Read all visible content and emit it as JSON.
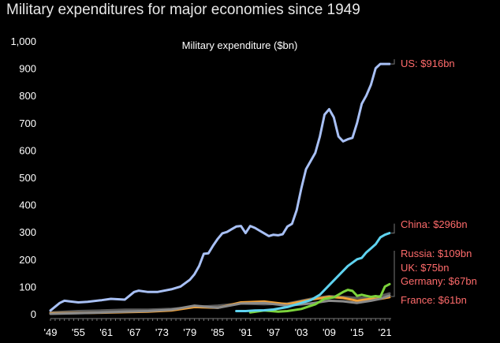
{
  "chart_data": {
    "type": "line",
    "title": "Military expenditures for major economies since 1949",
    "subtitle": "Military expenditure ($bn)",
    "xlabel": "",
    "ylabel": "",
    "xlim": [
      1949,
      2022
    ],
    "ylim": [
      0,
      1000
    ],
    "grid": false,
    "y_ticks": [
      0,
      100,
      200,
      300,
      400,
      500,
      600,
      700,
      800,
      900,
      1000
    ],
    "y_tick_labels": [
      "0",
      "100",
      "200",
      "300",
      "400",
      "500",
      "600",
      "700",
      "800",
      "900",
      "1,000"
    ],
    "x_ticks": [
      1949,
      1955,
      1961,
      1967,
      1973,
      1979,
      1985,
      1991,
      1997,
      2003,
      2009,
      2015,
      2021
    ],
    "x_tick_labels": [
      "'49",
      "'55",
      "'61",
      "'67",
      "'73",
      "'79",
      "'85",
      "'91",
      "'97",
      "'03",
      "'09",
      "'15",
      "'21"
    ],
    "series": [
      {
        "name": "UK",
        "color": "#5a5a5a",
        "label": "UK: $75bn",
        "x": [
          1949,
          1955,
          1960,
          1965,
          1970,
          1975,
          1980,
          1985,
          1990,
          1995,
          2000,
          2005,
          2009,
          2012,
          2015,
          2018,
          2020,
          2022
        ],
        "y": [
          5,
          10,
          12,
          15,
          15,
          18,
          25,
          30,
          38,
          35,
          38,
          55,
          65,
          62,
          58,
          60,
          65,
          75
        ]
      },
      {
        "name": "France",
        "color": "#f2a33a",
        "label": "France: $61bn",
        "x": [
          1949,
          1955,
          1960,
          1965,
          1970,
          1975,
          1980,
          1985,
          1990,
          1995,
          2000,
          2005,
          2009,
          2012,
          2015,
          2018,
          2020,
          2022
        ],
        "y": [
          2,
          3,
          4,
          6,
          8,
          12,
          25,
          22,
          42,
          45,
          35,
          52,
          62,
          58,
          48,
          55,
          55,
          61
        ]
      },
      {
        "name": "Germany",
        "color": "#8a8a8a",
        "label": "Germany: $67bn",
        "x": [
          1949,
          1955,
          1960,
          1965,
          1970,
          1975,
          1980,
          1985,
          1990,
          1995,
          2000,
          2005,
          2009,
          2012,
          2015,
          2018,
          2020,
          2022
        ],
        "y": [
          0,
          2,
          5,
          8,
          10,
          15,
          30,
          22,
          38,
          40,
          30,
          38,
          48,
          46,
          40,
          48,
          55,
          67
        ]
      },
      {
        "name": "Russia",
        "color": "#7cd33c",
        "label": "Russia: $109bn",
        "x": [
          1992,
          1995,
          1998,
          2000,
          2003,
          2006,
          2008,
          2010,
          2012,
          2013,
          2014,
          2015,
          2016,
          2017,
          2018,
          2019,
          2020,
          2021,
          2022
        ],
        "y": [
          5,
          12,
          8,
          10,
          18,
          35,
          55,
          60,
          80,
          88,
          84,
          66,
          70,
          66,
          62,
          65,
          62,
          100,
          109
        ]
      },
      {
        "name": "China",
        "color": "#5fd3f0",
        "label": "China: $296bn",
        "x": [
          1989,
          1991,
          1993,
          1995,
          1997,
          2000,
          2003,
          2005,
          2007,
          2009,
          2011,
          2013,
          2015,
          2016,
          2017,
          2018,
          2019,
          2020,
          2021,
          2022
        ],
        "y": [
          10,
          10,
          12,
          13,
          16,
          25,
          40,
          50,
          70,
          105,
          140,
          175,
          200,
          205,
          225,
          240,
          255,
          280,
          290,
          296
        ]
      },
      {
        "name": "US",
        "color": "#a8c0f5",
        "label": "US: $916bn",
        "x": [
          1949,
          1951,
          1952,
          1953,
          1955,
          1957,
          1960,
          1962,
          1965,
          1967,
          1968,
          1970,
          1972,
          1975,
          1977,
          1979,
          1980,
          1981,
          1982,
          1983,
          1984,
          1985,
          1986,
          1987,
          1988,
          1989,
          1990,
          1991,
          1992,
          1993,
          1994,
          1995,
          1996,
          1997,
          1998,
          1999,
          2000,
          2001,
          2002,
          2003,
          2004,
          2005,
          2006,
          2007,
          2008,
          2009,
          2010,
          2011,
          2012,
          2013,
          2014,
          2015,
          2016,
          2017,
          2018,
          2019,
          2020,
          2021,
          2022
        ],
        "y": [
          12,
          40,
          48,
          46,
          42,
          44,
          50,
          55,
          52,
          80,
          85,
          80,
          80,
          90,
          100,
          125,
          145,
          175,
          220,
          222,
          250,
          275,
          295,
          300,
          310,
          320,
          322,
          296,
          322,
          315,
          305,
          295,
          285,
          290,
          288,
          292,
          320,
          330,
          380,
          460,
          530,
          560,
          590,
          650,
          730,
          750,
          720,
          650,
          632,
          640,
          645,
          700,
          770,
          800,
          840,
          900,
          916,
          916,
          916
        ]
      }
    ],
    "annotations": [
      {
        "series": "US",
        "text": "US: $916bn"
      },
      {
        "series": "China",
        "text": "China: $296bn"
      },
      {
        "series": "Russia",
        "text": "Russia: $109bn"
      },
      {
        "series": "UK",
        "text": "UK: $75bn"
      },
      {
        "series": "Germany",
        "text": "Germany: $67bn"
      },
      {
        "series": "France",
        "text": "France: $61bn"
      }
    ],
    "label_color": "#ff6b6b",
    "axis_color": "#777777"
  }
}
